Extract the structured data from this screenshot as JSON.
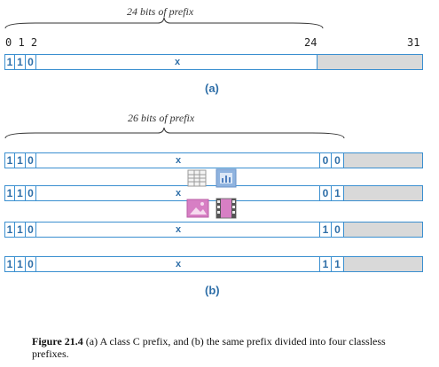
{
  "part_a": {
    "brace_label": "24 bits of prefix",
    "bit_positions": [
      "0 1 2",
      "24",
      "31"
    ],
    "bits": [
      "1",
      "1",
      "0"
    ],
    "x": "x",
    "label": "(a)"
  },
  "part_b": {
    "brace_label": "26 bits of prefix",
    "rows": [
      {
        "bits": [
          "1",
          "1",
          "0"
        ],
        "x": "x",
        "suffix": [
          "0",
          "0"
        ]
      },
      {
        "bits": [
          "1",
          "1",
          "0"
        ],
        "x": "x",
        "suffix": [
          "0",
          "1"
        ]
      },
      {
        "bits": [
          "1",
          "1",
          "0"
        ],
        "x": "x",
        "suffix": [
          "1",
          "0"
        ]
      },
      {
        "bits": [
          "1",
          "1",
          "0"
        ],
        "x": "x",
        "suffix": [
          "1",
          "1"
        ]
      }
    ],
    "label": "(b)"
  },
  "caption": {
    "figure": "Figure 21.4",
    "text": "(a) A class C prefix, and (b) the same prefix divided into four classless prefixes."
  },
  "colors": {
    "bit_blue": "#2f6fa8",
    "border_blue": "#3a8fd0",
    "gray_fill": "#d9d9d9"
  }
}
